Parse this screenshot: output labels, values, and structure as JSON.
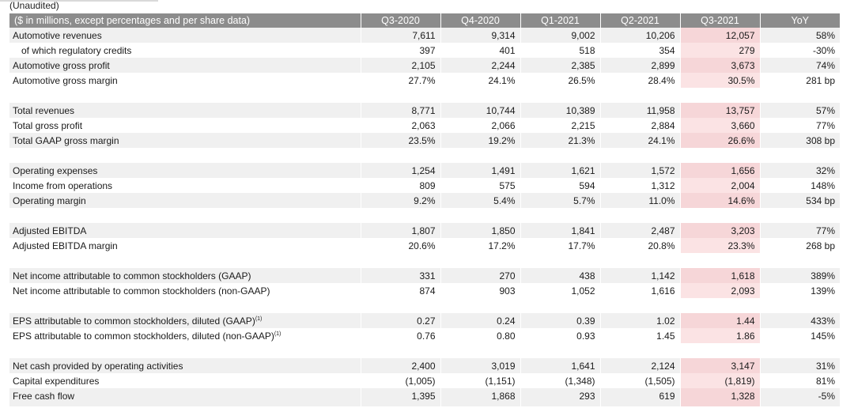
{
  "caption": "(Unaudited)",
  "header": {
    "label": "($ in millions, except percentages and per share data)",
    "columns": [
      "Q3-2020",
      "Q4-2020",
      "Q1-2021",
      "Q2-2021",
      "Q3-2021",
      "YoY"
    ]
  },
  "highlight_color": "#f6d6d8",
  "header_color": "#8c8c8c",
  "rows": [
    {
      "label": "Automotive revenues",
      "values": [
        "7,611",
        "9,314",
        "9,002",
        "10,206",
        "12,057",
        "58%"
      ]
    },
    {
      "label": "of which regulatory credits",
      "values": [
        "397",
        "401",
        "518",
        "354",
        "279",
        "-30%"
      ]
    },
    {
      "label": "Automotive gross profit",
      "values": [
        "2,105",
        "2,244",
        "2,385",
        "2,899",
        "3,673",
        "74%"
      ]
    },
    {
      "label": "Automotive gross margin",
      "values": [
        "27.7%",
        "24.1%",
        "26.5%",
        "28.4%",
        "30.5%",
        "281 bp"
      ]
    },
    {
      "label": "Total revenues",
      "values": [
        "8,771",
        "10,744",
        "10,389",
        "11,958",
        "13,757",
        "57%"
      ]
    },
    {
      "label": "Total gross profit",
      "values": [
        "2,063",
        "2,066",
        "2,215",
        "2,884",
        "3,660",
        "77%"
      ]
    },
    {
      "label": "Total GAAP gross margin",
      "values": [
        "23.5%",
        "19.2%",
        "21.3%",
        "24.1%",
        "26.6%",
        "308 bp"
      ]
    },
    {
      "label": "Operating expenses",
      "values": [
        "1,254",
        "1,491",
        "1,621",
        "1,572",
        "1,656",
        "32%"
      ]
    },
    {
      "label": "Income from operations",
      "values": [
        "809",
        "575",
        "594",
        "1,312",
        "2,004",
        "148%"
      ]
    },
    {
      "label": "Operating margin",
      "values": [
        "9.2%",
        "5.4%",
        "5.7%",
        "11.0%",
        "14.6%",
        "534 bp"
      ]
    },
    {
      "label": "Adjusted EBITDA",
      "values": [
        "1,807",
        "1,850",
        "1,841",
        "2,487",
        "3,203",
        "77%"
      ]
    },
    {
      "label": "Adjusted EBITDA margin",
      "values": [
        "20.6%",
        "17.2%",
        "17.7%",
        "20.8%",
        "23.3%",
        "268 bp"
      ]
    },
    {
      "label": "Net income attributable to common stockholders (GAAP)",
      "values": [
        "331",
        "270",
        "438",
        "1,142",
        "1,618",
        "389%"
      ]
    },
    {
      "label": "Net income attributable to common stockholders (non-GAAP)",
      "values": [
        "874",
        "903",
        "1,052",
        "1,616",
        "2,093",
        "139%"
      ]
    },
    {
      "label": "EPS attributable to common stockholders, diluted (GAAP)",
      "footnote": "(1)",
      "values": [
        "0.27",
        "0.24",
        "0.39",
        "1.02",
        "1.44",
        "433%"
      ]
    },
    {
      "label": "EPS attributable to common stockholders, diluted (non-GAAP)",
      "footnote": "(1)",
      "values": [
        "0.76",
        "0.80",
        "0.93",
        "1.45",
        "1.86",
        "145%"
      ]
    },
    {
      "label": "Net cash provided by operating activities",
      "values": [
        "2,400",
        "3,019",
        "1,641",
        "2,124",
        "3,147",
        "31%"
      ]
    },
    {
      "label": "Capital expenditures",
      "values": [
        "(1,005)",
        "(1,151)",
        "(1,348)",
        "(1,505)",
        "(1,819)",
        "81%"
      ]
    },
    {
      "label": "Free cash flow",
      "values": [
        "1,395",
        "1,868",
        "293",
        "619",
        "1,328",
        "-5%"
      ]
    }
  ]
}
